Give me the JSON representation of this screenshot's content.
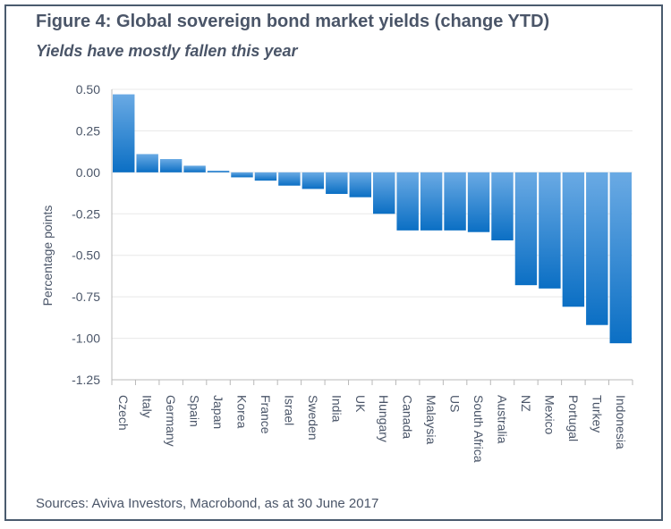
{
  "header": {
    "title": "Figure 4: Global sovereign bond market yields (change YTD)",
    "subtitle": "Yields have mostly fallen this year"
  },
  "footer": {
    "source": "Sources: Aviva Investors, Macrobond, as at 30 June 2017"
  },
  "colors": {
    "bar_top": "#6aaae4",
    "bar_bottom": "#0b6fc4",
    "text": "#4a5568",
    "grid": "#e8e8e8",
    "frame": "#4a5b6e"
  },
  "chart_data": {
    "type": "bar",
    "title": "Figure 4: Global sovereign bond market yields (change YTD)",
    "subtitle": "Yields have mostly fallen this year",
    "xlabel": "",
    "ylabel": "Percentage points",
    "ylim": [
      -1.25,
      0.5
    ],
    "yticks": [
      0.5,
      0.25,
      0.0,
      -0.25,
      -0.5,
      -0.75,
      -1.0,
      -1.25
    ],
    "ytick_labels": [
      "0.50",
      "0.25",
      "0.00",
      "-0.25",
      "-0.50",
      "-0.75",
      "-1.00",
      "-1.25"
    ],
    "grid": true,
    "categories": [
      "Czech",
      "Italy",
      "Germany",
      "Spain",
      "Japan",
      "Korea",
      "France",
      "Israel",
      "Sweden",
      "India",
      "UK",
      "Hungary",
      "Canada",
      "Malaysia",
      "US",
      "South Africa",
      "Australia",
      "NZ",
      "Mexico",
      "Portugal",
      "Turkey",
      "Indonesia"
    ],
    "values": [
      0.47,
      0.11,
      0.08,
      0.04,
      0.01,
      -0.03,
      -0.05,
      -0.08,
      -0.1,
      -0.13,
      -0.15,
      -0.25,
      -0.35,
      -0.35,
      -0.35,
      -0.36,
      -0.41,
      -0.68,
      -0.7,
      -0.81,
      -0.92,
      -1.03
    ]
  }
}
